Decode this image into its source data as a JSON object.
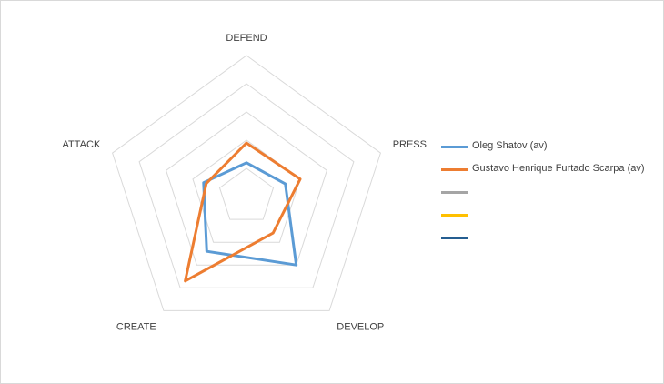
{
  "chart_data": {
    "type": "radar",
    "axes": [
      "DEFEND",
      "PRESS",
      "DEVELOP",
      "CREATE",
      "ATTACK"
    ],
    "rlim": [
      0,
      5
    ],
    "rings": 5,
    "grid": true,
    "legend_position": "right",
    "series": [
      {
        "name": "Oleg Shatov (av)",
        "color": "#5B9BD5",
        "values": [
          1.2,
          1.45,
          3.0,
          2.4,
          1.6
        ]
      },
      {
        "name": "Gustavo Henrique Furtado Scarpa (av)",
        "color": "#ED7D31",
        "values": [
          1.9,
          2.0,
          1.6,
          3.7,
          1.5
        ]
      },
      {
        "name": "",
        "color": "#A5A5A5",
        "values": []
      },
      {
        "name": "",
        "color": "#FFC000",
        "values": []
      },
      {
        "name": "",
        "color": "#255E91",
        "values": []
      }
    ]
  }
}
